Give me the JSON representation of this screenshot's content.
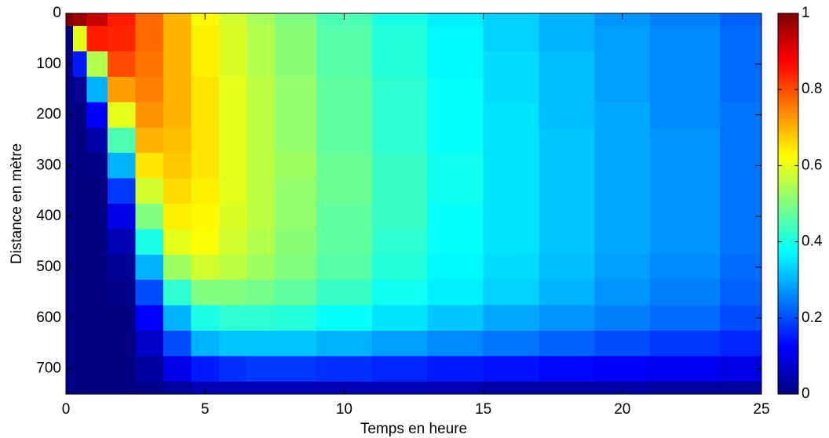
{
  "chart_data": {
    "type": "heatmap",
    "x_label": "Temps en heure",
    "y_label": "Distance en mètre",
    "colormap": "jet",
    "x": [
      0,
      0.5,
      1,
      2,
      3,
      4,
      5,
      6,
      7,
      8,
      10,
      12,
      14,
      16,
      18,
      20,
      22,
      25
    ],
    "y": [
      0,
      50,
      100,
      150,
      200,
      250,
      300,
      350,
      400,
      450,
      500,
      550,
      600,
      650,
      700,
      750
    ],
    "z": [
      [
        1,
        0.97,
        0.93,
        0.85,
        0.77,
        0.7,
        0.63,
        0.58,
        0.54,
        0.5,
        0.45,
        0.4,
        0.36,
        0.33,
        0.3,
        0.27,
        0.25,
        0.22
      ],
      [
        0,
        0.6,
        0.85,
        0.84,
        0.77,
        0.7,
        0.64,
        0.59,
        0.55,
        0.51,
        0.46,
        0.41,
        0.37,
        0.33,
        0.3,
        0.28,
        0.26,
        0.23
      ],
      [
        0,
        0.15,
        0.55,
        0.8,
        0.76,
        0.7,
        0.64,
        0.59,
        0.55,
        0.51,
        0.46,
        0.41,
        0.37,
        0.34,
        0.31,
        0.28,
        0.26,
        0.23
      ],
      [
        0,
        0.02,
        0.3,
        0.72,
        0.75,
        0.7,
        0.65,
        0.6,
        0.56,
        0.52,
        0.47,
        0.42,
        0.38,
        0.34,
        0.31,
        0.28,
        0.26,
        0.23
      ],
      [
        0,
        0,
        0.12,
        0.6,
        0.73,
        0.7,
        0.65,
        0.6,
        0.56,
        0.52,
        0.47,
        0.42,
        0.38,
        0.35,
        0.31,
        0.29,
        0.26,
        0.24
      ],
      [
        0,
        0,
        0.04,
        0.45,
        0.7,
        0.69,
        0.65,
        0.6,
        0.56,
        0.52,
        0.47,
        0.42,
        0.38,
        0.35,
        0.32,
        0.29,
        0.27,
        0.24
      ],
      [
        0,
        0,
        0.01,
        0.3,
        0.65,
        0.68,
        0.65,
        0.6,
        0.56,
        0.53,
        0.48,
        0.43,
        0.39,
        0.35,
        0.32,
        0.29,
        0.27,
        0.24
      ],
      [
        0,
        0,
        0,
        0.18,
        0.58,
        0.66,
        0.64,
        0.6,
        0.56,
        0.52,
        0.48,
        0.43,
        0.39,
        0.35,
        0.32,
        0.29,
        0.27,
        0.24
      ],
      [
        0,
        0,
        0,
        0.1,
        0.5,
        0.64,
        0.63,
        0.59,
        0.56,
        0.52,
        0.47,
        0.43,
        0.38,
        0.35,
        0.32,
        0.29,
        0.27,
        0.24
      ],
      [
        0,
        0,
        0,
        0.05,
        0.4,
        0.6,
        0.62,
        0.58,
        0.55,
        0.51,
        0.47,
        0.42,
        0.38,
        0.35,
        0.32,
        0.29,
        0.27,
        0.24
      ],
      [
        0,
        0,
        0,
        0.02,
        0.3,
        0.53,
        0.58,
        0.56,
        0.53,
        0.5,
        0.46,
        0.41,
        0.37,
        0.34,
        0.31,
        0.28,
        0.26,
        0.23
      ],
      [
        0,
        0,
        0,
        0.01,
        0.2,
        0.42,
        0.5,
        0.5,
        0.49,
        0.47,
        0.43,
        0.39,
        0.36,
        0.33,
        0.3,
        0.27,
        0.25,
        0.22
      ],
      [
        0,
        0,
        0,
        0,
        0.12,
        0.3,
        0.4,
        0.42,
        0.42,
        0.41,
        0.38,
        0.35,
        0.32,
        0.29,
        0.27,
        0.25,
        0.23,
        0.2
      ],
      [
        0,
        0,
        0,
        0,
        0.07,
        0.2,
        0.3,
        0.32,
        0.32,
        0.32,
        0.3,
        0.28,
        0.26,
        0.24,
        0.22,
        0.2,
        0.18,
        0.16
      ],
      [
        0,
        0,
        0,
        0,
        0.03,
        0.1,
        0.15,
        0.17,
        0.18,
        0.18,
        0.17,
        0.16,
        0.15,
        0.14,
        0.13,
        0.12,
        0.11,
        0.1
      ],
      [
        0,
        0,
        0,
        0,
        0.01,
        0.03,
        0.05,
        0.05,
        0.05,
        0.05,
        0.05,
        0.05,
        0.05,
        0.04,
        0.04,
        0.04,
        0.03,
        0.03
      ]
    ],
    "xlim": [
      0,
      25
    ],
    "xticks": [
      0,
      5,
      10,
      15,
      20,
      25
    ],
    "ylim": [
      0,
      750
    ],
    "yticks": [
      0,
      100,
      200,
      300,
      400,
      500,
      600,
      700
    ],
    "y_reversed": true,
    "clim": [
      0,
      1
    ],
    "cticks": [
      0,
      0.2,
      0.4,
      0.6,
      0.8,
      1
    ]
  }
}
